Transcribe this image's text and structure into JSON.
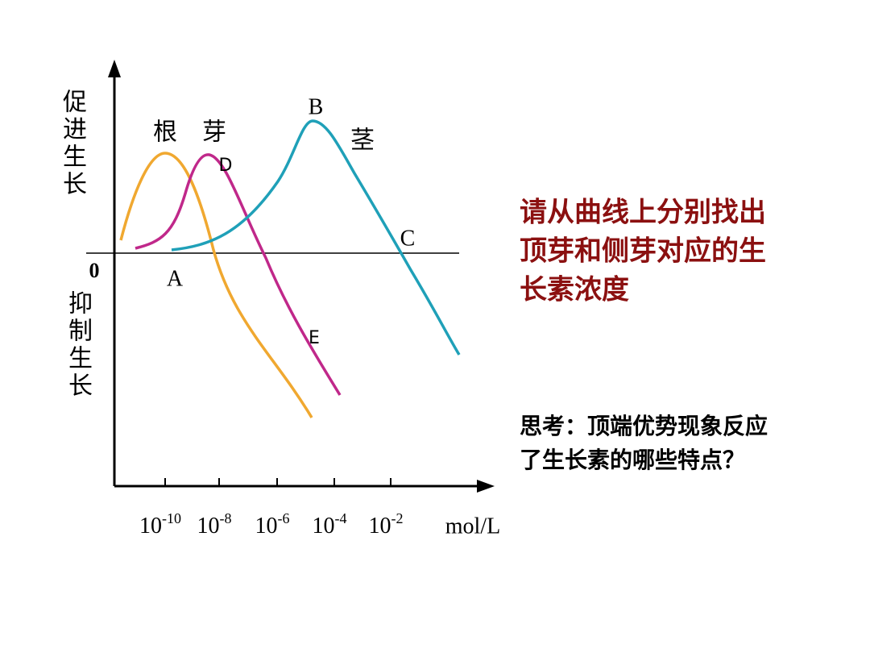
{
  "diagram": {
    "y_label_promote": "促进生长",
    "y_label_inhibit": "抑制生长",
    "origin": "0",
    "x_ticks": [
      {
        "base": "10",
        "exp": "-10"
      },
      {
        "base": "10",
        "exp": "-8"
      },
      {
        "base": "10",
        "exp": "-6"
      },
      {
        "base": "10",
        "exp": "-4"
      },
      {
        "base": "10",
        "exp": "-2"
      }
    ],
    "x_unit": "mol/L",
    "curve_labels": [
      "根",
      "芽",
      "茎"
    ],
    "points": [
      "A",
      "B",
      "C",
      "D",
      "E"
    ]
  },
  "question": {
    "lines": [
      "请从曲线上分别找出",
      "顶芽和侧芽对应的生",
      "长素浓度"
    ]
  },
  "thinking": {
    "lines": [
      "思考：顶端优势现象反应",
      "了生长素的哪些特点？"
    ]
  }
}
